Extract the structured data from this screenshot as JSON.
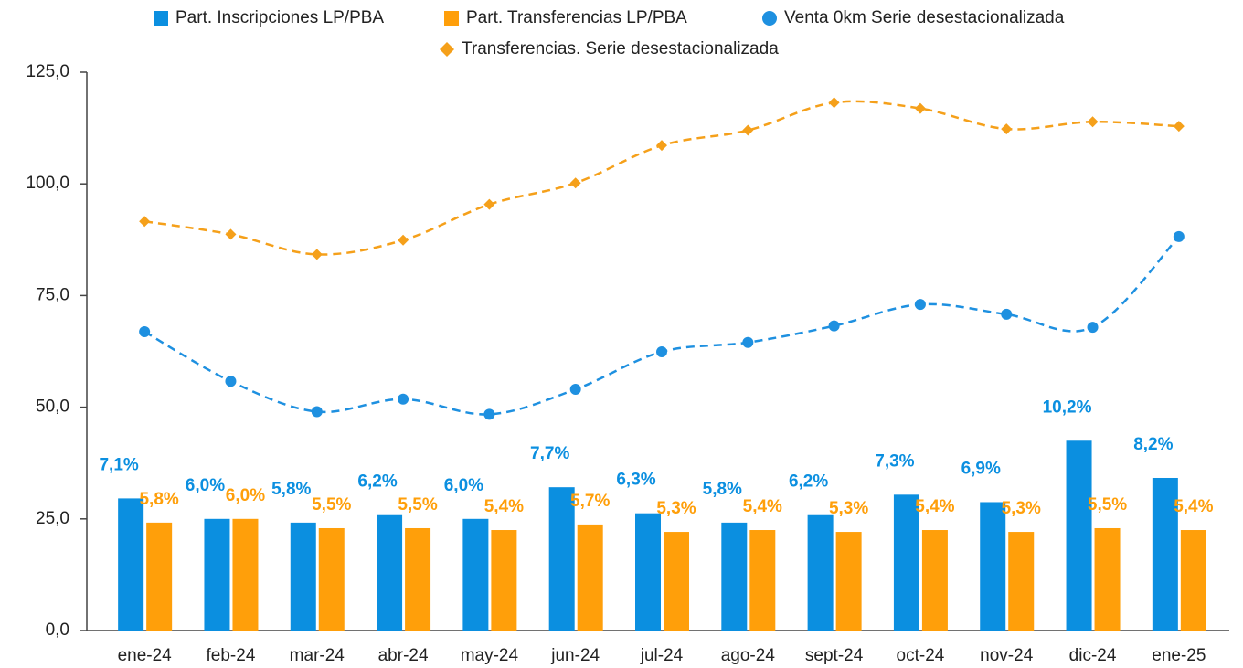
{
  "chart_data": {
    "type": "bar",
    "categories": [
      "ene-24",
      "feb-24",
      "mar-24",
      "abr-24",
      "may-24",
      "jun-24",
      "jul-24",
      "ago-24",
      "sept-24",
      "oct-24",
      "nov-24",
      "dic-24",
      "ene-25"
    ],
    "ylim": [
      0,
      125
    ],
    "yticks": [
      {
        "value": 0,
        "label": "0,0"
      },
      {
        "value": 25,
        "label": "25,0"
      },
      {
        "value": 50,
        "label": "50,0"
      },
      {
        "value": 75,
        "label": "75,0"
      },
      {
        "value": 100,
        "label": "100,0"
      },
      {
        "value": 125,
        "label": "125,0"
      }
    ],
    "y2lim": [
      0,
      30
    ],
    "legend": "top",
    "series": [
      {
        "name": "Part. Inscripciones LP/PBA",
        "type": "bar",
        "axis": "y2",
        "color": "#0b8fe0",
        "values": [
          7.1,
          6.0,
          5.8,
          6.2,
          6.0,
          7.7,
          6.3,
          5.8,
          6.2,
          7.3,
          6.9,
          10.2,
          8.2
        ],
        "value_labels": [
          "7,1%",
          "6,0%",
          "5,8%",
          "6,2%",
          "6,0%",
          "7,7%",
          "6,3%",
          "5,8%",
          "6,2%",
          "7,3%",
          "6,9%",
          "10,2%",
          "8,2%"
        ]
      },
      {
        "name": "Part. Transferencias LP/PBA",
        "type": "bar",
        "axis": "y2",
        "color": "#ff9f0a",
        "values": [
          5.8,
          6.0,
          5.5,
          5.5,
          5.4,
          5.7,
          5.3,
          5.4,
          5.3,
          5.4,
          5.3,
          5.5,
          5.4
        ],
        "value_labels": [
          "5,8%",
          "6,0%",
          "5,5%",
          "5,5%",
          "5,4%",
          "5,7%",
          "5,3%",
          "5,4%",
          "5,3%",
          "5,4%",
          "5,3%",
          "5,5%",
          "5,4%"
        ]
      },
      {
        "name": "Venta 0km Serie desestacionalizada",
        "type": "line",
        "marker": "circle",
        "color": "#1e90e0",
        "values": [
          66.9,
          55.8,
          49.0,
          51.8,
          48.4,
          54.0,
          62.4,
          64.5,
          68.2,
          73.0,
          70.8,
          67.9,
          88.2
        ]
      },
      {
        "name": "Transferencias. Serie desestacionalizada",
        "type": "line",
        "marker": "diamond",
        "color": "#f5a01a",
        "values": [
          91.6,
          88.7,
          84.2,
          87.4,
          95.4,
          100.2,
          108.6,
          112.0,
          118.2,
          116.9,
          112.3,
          113.9,
          112.9
        ]
      }
    ]
  }
}
